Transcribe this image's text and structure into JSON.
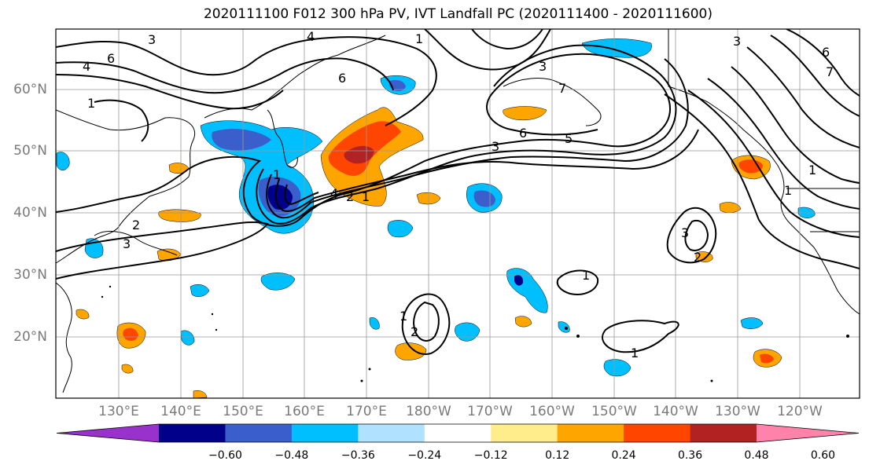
{
  "title": "2020111100 F012 300 hPa PV, IVT Landfall PC (2020111400 - 2020111600)",
  "lat_labels": [
    "60°N",
    "50°N",
    "40°N",
    "30°N",
    "20°N"
  ],
  "lon_labels": [
    "130°E",
    "140°E",
    "150°E",
    "160°E",
    "170°E",
    "180°W",
    "170°W",
    "160°W",
    "150°W",
    "140°W",
    "130°W",
    "120°W"
  ],
  "colorbar": {
    "tick_labels": [
      "−0.60",
      "−0.48",
      "−0.36",
      "−0.24",
      "−0.12",
      "0.12",
      "0.24",
      "0.36",
      "0.48",
      "0.60"
    ],
    "colors": [
      "#9932cc",
      "#00008b",
      "#3a5fcd",
      "#00bfff",
      "#b0e2ff",
      "#ffffff",
      "#ffec8b",
      "#ffa500",
      "#ff4500",
      "#b22222",
      "#ff82ab"
    ]
  },
  "contour_labels": [
    "3",
    "4",
    "6",
    "1",
    "4",
    "1",
    "3",
    "6",
    "3",
    "7",
    "6",
    "5",
    "3",
    "6",
    "7",
    "1",
    "2",
    "3",
    "1",
    "4",
    "2",
    "1",
    "3",
    "2",
    "1",
    "2",
    "1",
    "1",
    "1"
  ]
}
